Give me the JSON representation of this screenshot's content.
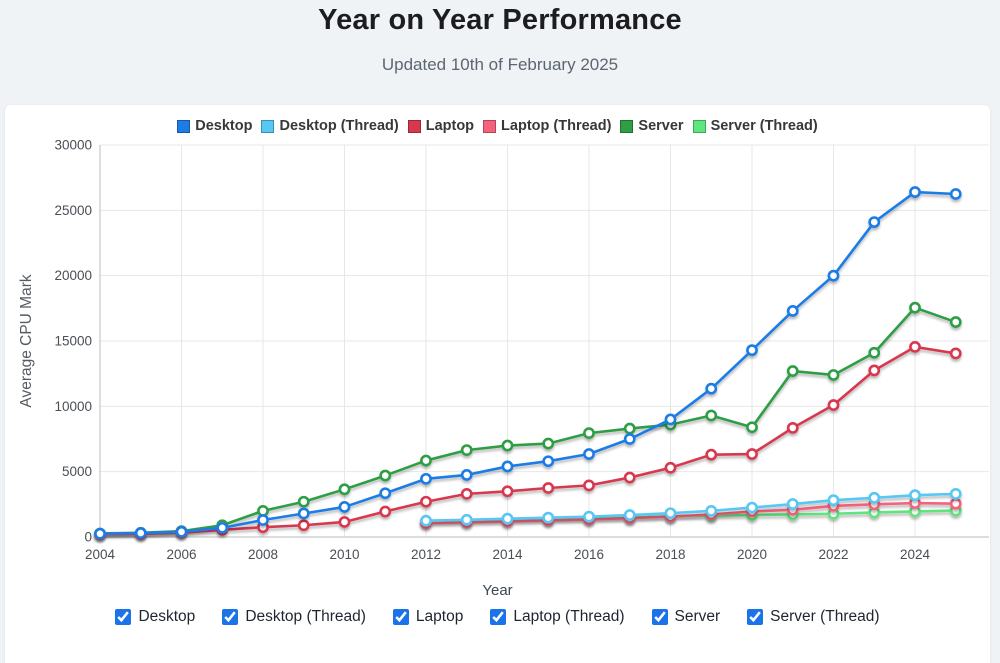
{
  "header": {
    "title": "Year on Year Performance",
    "subtitle": "Updated 10th of February 2025"
  },
  "chart_data": {
    "type": "line",
    "title": "Year on Year Performance",
    "xlabel": "Year",
    "ylabel": "Average CPU Mark",
    "xlim": [
      2004,
      2025
    ],
    "ylim": [
      0,
      30000
    ],
    "x_ticks": [
      2004,
      2006,
      2008,
      2010,
      2012,
      2014,
      2016,
      2018,
      2020,
      2022,
      2024
    ],
    "y_ticks": [
      0,
      5000,
      10000,
      15000,
      20000,
      25000,
      30000
    ],
    "grid": true,
    "legend_position": "top",
    "marker": "open-circle",
    "series": [
      {
        "name": "Desktop",
        "color": "#1e7ce6",
        "x": [
          2004,
          2005,
          2006,
          2007,
          2008,
          2009,
          2010,
          2011,
          2012,
          2013,
          2014,
          2015,
          2016,
          2017,
          2018,
          2019,
          2020,
          2021,
          2022,
          2023,
          2024,
          2025
        ],
        "values": [
          250,
          300,
          400,
          700,
          1300,
          1800,
          2300,
          3350,
          4450,
          4750,
          5400,
          5800,
          6350,
          7500,
          9000,
          11350,
          14300,
          17300,
          20000,
          24100,
          26400,
          26250
        ]
      },
      {
        "name": "Desktop (Thread)",
        "color": "#58c7f3",
        "x": [
          2012,
          2013,
          2014,
          2015,
          2016,
          2017,
          2018,
          2019,
          2020,
          2021,
          2022,
          2023,
          2024,
          2025
        ],
        "values": [
          1250,
          1320,
          1400,
          1480,
          1560,
          1680,
          1820,
          2000,
          2250,
          2520,
          2820,
          3000,
          3200,
          3300
        ]
      },
      {
        "name": "Laptop",
        "color": "#d7384e",
        "x": [
          2004,
          2005,
          2006,
          2007,
          2008,
          2009,
          2010,
          2011,
          2012,
          2013,
          2014,
          2015,
          2016,
          2017,
          2018,
          2019,
          2020,
          2021,
          2022,
          2023,
          2024,
          2025
        ],
        "values": [
          200,
          230,
          330,
          550,
          750,
          900,
          1150,
          1950,
          2700,
          3300,
          3500,
          3750,
          3950,
          4550,
          5300,
          6300,
          6350,
          8350,
          10100,
          12750,
          14550,
          14050
        ]
      },
      {
        "name": "Laptop (Thread)",
        "color": "#f4627d",
        "x": [
          2012,
          2013,
          2014,
          2015,
          2016,
          2017,
          2018,
          2019,
          2020,
          2021,
          2022,
          2023,
          2024,
          2025
        ],
        "values": [
          1060,
          1120,
          1190,
          1280,
          1340,
          1440,
          1560,
          1720,
          1950,
          2080,
          2380,
          2500,
          2600,
          2550
        ]
      },
      {
        "name": "Server",
        "color": "#2f9e45",
        "x": [
          2004,
          2005,
          2006,
          2007,
          2008,
          2009,
          2010,
          2011,
          2012,
          2013,
          2014,
          2015,
          2016,
          2017,
          2018,
          2019,
          2020,
          2021,
          2022,
          2023,
          2024,
          2025
        ],
        "values": [
          270,
          320,
          450,
          900,
          2000,
          2700,
          3650,
          4700,
          5850,
          6650,
          7000,
          7150,
          7950,
          8300,
          8600,
          9300,
          8400,
          12700,
          12400,
          14100,
          17550,
          16450
        ]
      },
      {
        "name": "Server (Thread)",
        "color": "#5ee57d",
        "x": [
          2012,
          2013,
          2014,
          2015,
          2016,
          2017,
          2018,
          2019,
          2020,
          2021,
          2022,
          2023,
          2024,
          2025
        ],
        "values": [
          1180,
          1260,
          1320,
          1380,
          1430,
          1500,
          1580,
          1640,
          1680,
          1720,
          1780,
          1880,
          1960,
          2020
        ]
      }
    ]
  },
  "controls": {
    "checkboxes": [
      {
        "label": "Desktop",
        "checked": true
      },
      {
        "label": "Desktop (Thread)",
        "checked": true
      },
      {
        "label": "Laptop",
        "checked": true
      },
      {
        "label": "Laptop (Thread)",
        "checked": true
      },
      {
        "label": "Server",
        "checked": true
      },
      {
        "label": "Server (Thread)",
        "checked": true
      }
    ]
  },
  "colors": {
    "page_bg": "#eff3f6",
    "card_bg": "#ffffff",
    "grid": "#e7e7e7",
    "axis": "#c4c9cc",
    "tick_text": "#4a4f55",
    "axis_title": "#555b62",
    "checkbox_accent": "#1a73e8"
  }
}
